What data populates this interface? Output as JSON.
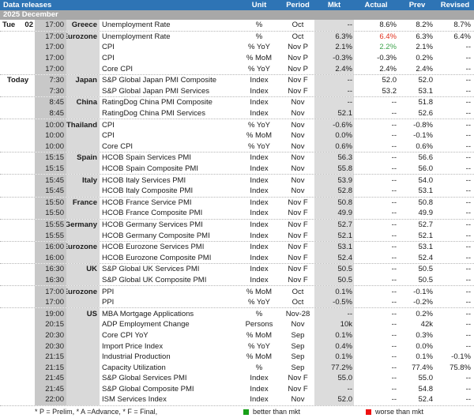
{
  "header": {
    "title": "Data releases",
    "month": "2025 December",
    "columns": [
      "Unit",
      "Period",
      "Mkt",
      "Actual",
      "Prev",
      "Revised"
    ]
  },
  "colors": {
    "header_blue": "#2e74b5",
    "month_gray": "#a8a8a8",
    "time_column_gray": "#c8c8c8",
    "country_column_gray": "#d9d9d9",
    "mkt_column_gray": "#dcdcdc",
    "actual_better_green": "#3fa34d",
    "actual_worse_red": "#e0301e",
    "legend_green": "#18a019",
    "legend_red": "#ee1111"
  },
  "footer": {
    "note": "* P = Prelim, * A =Advance, * F = Final,",
    "legend_better": "better than mkt",
    "legend_worse": "worse than mkt"
  },
  "rows": [
    {
      "day": "Tue",
      "daynum": "02",
      "time": "17:00",
      "country": "Greece",
      "desc": "Unemployment Rate",
      "unit": "%",
      "period": "Oct",
      "mkt": "--",
      "actual": "8.6%",
      "prev": "8.2%",
      "revised": "8.7%",
      "accent": "",
      "sep": true
    },
    {
      "day": "",
      "daynum": "",
      "time": "17:00",
      "country": "Eurozone",
      "desc": "Unemployment Rate",
      "unit": "%",
      "period": "Oct",
      "mkt": "6.3%",
      "actual": "6.4%",
      "prev": "6.3%",
      "revised": "6.4%",
      "accent": "red",
      "sep": false
    },
    {
      "day": "",
      "daynum": "",
      "time": "17:00",
      "country": "",
      "desc": "CPI",
      "unit": "% YoY",
      "period": "Nov P",
      "mkt": "2.1%",
      "actual": "2.2%",
      "prev": "2.1%",
      "revised": "--",
      "accent": "green",
      "sep": false
    },
    {
      "day": "",
      "daynum": "",
      "time": "17:00",
      "country": "",
      "desc": "CPI",
      "unit": "% MoM",
      "period": "Nov P",
      "mkt": "-0.3%",
      "actual": "-0.3%",
      "prev": "0.2%",
      "revised": "--",
      "accent": "",
      "sep": false
    },
    {
      "day": "",
      "daynum": "",
      "time": "17:00",
      "country": "",
      "desc": "Core CPI",
      "unit": "% YoY",
      "period": "Nov P",
      "mkt": "2.4%",
      "actual": "2.4%",
      "prev": "2.4%",
      "revised": "--",
      "accent": "",
      "sep": true
    },
    {
      "day": "Today",
      "daynum": "",
      "time": "7:30",
      "country": "Japan",
      "desc": "S&P Global Japan PMI Composite",
      "unit": "Index",
      "period": "Nov F",
      "mkt": "--",
      "actual": "52.0",
      "prev": "52.0",
      "revised": "--",
      "accent": "",
      "sep": false
    },
    {
      "day": "",
      "daynum": "",
      "time": "7:30",
      "country": "",
      "desc": "S&P Global Japan PMI Services",
      "unit": "Index",
      "period": "Nov F",
      "mkt": "--",
      "actual": "53.2",
      "prev": "53.1",
      "revised": "--",
      "accent": "",
      "sep": true
    },
    {
      "day": "",
      "daynum": "",
      "time": "8:45",
      "country": "China",
      "desc": "RatingDog China PMI Composite",
      "unit": "Index",
      "period": "Nov",
      "mkt": "--",
      "actual": "--",
      "prev": "51.8",
      "revised": "--",
      "accent": "",
      "sep": false
    },
    {
      "day": "",
      "daynum": "",
      "time": "8:45",
      "country": "",
      "desc": "RatingDog China PMI Services",
      "unit": "Index",
      "period": "Nov",
      "mkt": "52.1",
      "actual": "--",
      "prev": "52.6",
      "revised": "--",
      "accent": "",
      "sep": true
    },
    {
      "day": "",
      "daynum": "",
      "time": "10:00",
      "country": "Thailand",
      "desc": "CPI",
      "unit": "% YoY",
      "period": "Nov",
      "mkt": "-0.6%",
      "actual": "--",
      "prev": "-0.8%",
      "revised": "--",
      "accent": "",
      "sep": false
    },
    {
      "day": "",
      "daynum": "",
      "time": "10:00",
      "country": "",
      "desc": "CPI",
      "unit": "% MoM",
      "period": "Nov",
      "mkt": "0.0%",
      "actual": "--",
      "prev": "-0.1%",
      "revised": "--",
      "accent": "",
      "sep": false
    },
    {
      "day": "",
      "daynum": "",
      "time": "10:00",
      "country": "",
      "desc": "Core CPI",
      "unit": "% YoY",
      "period": "Nov",
      "mkt": "0.6%",
      "actual": "--",
      "prev": "0.6%",
      "revised": "--",
      "accent": "",
      "sep": true
    },
    {
      "day": "",
      "daynum": "",
      "time": "15:15",
      "country": "Spain",
      "desc": "HCOB Spain Services PMI",
      "unit": "Index",
      "period": "Nov",
      "mkt": "56.3",
      "actual": "--",
      "prev": "56.6",
      "revised": "--",
      "accent": "",
      "sep": false
    },
    {
      "day": "",
      "daynum": "",
      "time": "15:15",
      "country": "",
      "desc": "HCOB Spain Composite PMI",
      "unit": "Index",
      "period": "Nov",
      "mkt": "55.8",
      "actual": "--",
      "prev": "56.0",
      "revised": "--",
      "accent": "",
      "sep": true
    },
    {
      "day": "",
      "daynum": "",
      "time": "15:45",
      "country": "Italy",
      "desc": "HCOB Italy Services PMI",
      "unit": "Index",
      "period": "Nov",
      "mkt": "53.9",
      "actual": "--",
      "prev": "54.0",
      "revised": "--",
      "accent": "",
      "sep": false
    },
    {
      "day": "",
      "daynum": "",
      "time": "15:45",
      "country": "",
      "desc": "HCOB Italy Composite PMI",
      "unit": "Index",
      "period": "Nov",
      "mkt": "52.8",
      "actual": "--",
      "prev": "53.1",
      "revised": "--",
      "accent": "",
      "sep": true
    },
    {
      "day": "",
      "daynum": "",
      "time": "15:50",
      "country": "France",
      "desc": "HCOB France Service PMI",
      "unit": "Index",
      "period": "Nov F",
      "mkt": "50.8",
      "actual": "--",
      "prev": "50.8",
      "revised": "--",
      "accent": "",
      "sep": false
    },
    {
      "day": "",
      "daynum": "",
      "time": "15:50",
      "country": "",
      "desc": "HCOB France Composite PMI",
      "unit": "Index",
      "period": "Nov F",
      "mkt": "49.9",
      "actual": "--",
      "prev": "49.9",
      "revised": "--",
      "accent": "",
      "sep": true
    },
    {
      "day": "",
      "daynum": "",
      "time": "15:55",
      "country": "Germany",
      "desc": "HCOB Germany Services PMI",
      "unit": "Index",
      "period": "Nov F",
      "mkt": "52.7",
      "actual": "--",
      "prev": "52.7",
      "revised": "--",
      "accent": "",
      "sep": false
    },
    {
      "day": "",
      "daynum": "",
      "time": "15:55",
      "country": "",
      "desc": "HCOB Germany Composite PMI",
      "unit": "Index",
      "period": "Nov F",
      "mkt": "52.1",
      "actual": "--",
      "prev": "52.1",
      "revised": "--",
      "accent": "",
      "sep": true
    },
    {
      "day": "",
      "daynum": "",
      "time": "16:00",
      "country": "Eurozone",
      "desc": "HCOB Eurozone Services PMI",
      "unit": "Index",
      "period": "Nov F",
      "mkt": "53.1",
      "actual": "--",
      "prev": "53.1",
      "revised": "--",
      "accent": "",
      "sep": false
    },
    {
      "day": "",
      "daynum": "",
      "time": "16:00",
      "country": "",
      "desc": "HCOB Eurozone Composite PMI",
      "unit": "Index",
      "period": "Nov F",
      "mkt": "52.4",
      "actual": "--",
      "prev": "52.4",
      "revised": "--",
      "accent": "",
      "sep": true
    },
    {
      "day": "",
      "daynum": "",
      "time": "16:30",
      "country": "UK",
      "desc": "S&P Global UK Services PMI",
      "unit": "Index",
      "period": "Nov F",
      "mkt": "50.5",
      "actual": "--",
      "prev": "50.5",
      "revised": "--",
      "accent": "",
      "sep": false
    },
    {
      "day": "",
      "daynum": "",
      "time": "16:30",
      "country": "",
      "desc": "S&P Global UK Composite PMI",
      "unit": "Index",
      "period": "Nov F",
      "mkt": "50.5",
      "actual": "--",
      "prev": "50.5",
      "revised": "--",
      "accent": "",
      "sep": true
    },
    {
      "day": "",
      "daynum": "",
      "time": "17:00",
      "country": "Eurozone",
      "desc": "PPI",
      "unit": "% MoM",
      "period": "Oct",
      "mkt": "0.1%",
      "actual": "--",
      "prev": "-0.1%",
      "revised": "--",
      "accent": "",
      "sep": false
    },
    {
      "day": "",
      "daynum": "",
      "time": "17:00",
      "country": "",
      "desc": "PPI",
      "unit": "% YoY",
      "period": "Oct",
      "mkt": "-0.5%",
      "actual": "--",
      "prev": "-0.2%",
      "revised": "--",
      "accent": "",
      "sep": true
    },
    {
      "day": "",
      "daynum": "",
      "time": "19:00",
      "country": "US",
      "desc": "MBA Mortgage Applications",
      "unit": "%",
      "period": "Nov-28",
      "mkt": "--",
      "actual": "--",
      "prev": "0.2%",
      "revised": "--",
      "accent": "",
      "sep": false
    },
    {
      "day": "",
      "daynum": "",
      "time": "20:15",
      "country": "",
      "desc": "ADP Employment Change",
      "unit": "Persons",
      "period": "Nov",
      "mkt": "10k",
      "actual": "--",
      "prev": "42k",
      "revised": "--",
      "accent": "",
      "sep": false
    },
    {
      "day": "",
      "daynum": "",
      "time": "20:30",
      "country": "",
      "desc": "Core CPI YoY",
      "unit": "% MoM",
      "period": "Sep",
      "mkt": "0.1%",
      "actual": "--",
      "prev": "0.3%",
      "revised": "--",
      "accent": "",
      "sep": false
    },
    {
      "day": "",
      "daynum": "",
      "time": "20:30",
      "country": "",
      "desc": "Import Price Index",
      "unit": "% YoY",
      "period": "Sep",
      "mkt": "0.4%",
      "actual": "--",
      "prev": "0.0%",
      "revised": "--",
      "accent": "",
      "sep": false
    },
    {
      "day": "",
      "daynum": "",
      "time": "21:15",
      "country": "",
      "desc": "Industrial Production",
      "unit": "% MoM",
      "period": "Sep",
      "mkt": "0.1%",
      "actual": "--",
      "prev": "0.1%",
      "revised": "-0.1%",
      "accent": "",
      "sep": false
    },
    {
      "day": "",
      "daynum": "",
      "time": "21:15",
      "country": "",
      "desc": "Capacity Utilization",
      "unit": "%",
      "period": "Sep",
      "mkt": "77.2%",
      "actual": "--",
      "prev": "77.4%",
      "revised": "75.8%",
      "accent": "",
      "sep": false
    },
    {
      "day": "",
      "daynum": "",
      "time": "21:45",
      "country": "",
      "desc": "S&P Global Services PMI",
      "unit": "Index",
      "period": "Nov F",
      "mkt": "55.0",
      "actual": "--",
      "prev": "55.0",
      "revised": "--",
      "accent": "",
      "sep": false
    },
    {
      "day": "",
      "daynum": "",
      "time": "21:45",
      "country": "",
      "desc": "S&P Global Composite PMI",
      "unit": "Index",
      "period": "Nov F",
      "mkt": "--",
      "actual": "--",
      "prev": "54.8",
      "revised": "--",
      "accent": "",
      "sep": false
    },
    {
      "day": "",
      "daynum": "",
      "time": "22:00",
      "country": "",
      "desc": "ISM Services Index",
      "unit": "Index",
      "period": "Nov",
      "mkt": "52.0",
      "actual": "--",
      "prev": "52.4",
      "revised": "--",
      "accent": "",
      "sep": true
    }
  ]
}
